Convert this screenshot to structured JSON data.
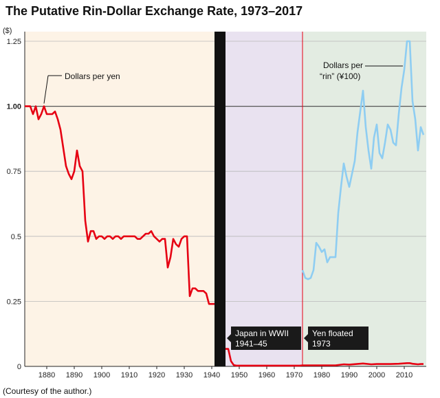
{
  "chart_data": {
    "type": "line",
    "title": "The Putative Rin-Dollar Exchange Rate, 1973–2017",
    "ylabel": "($)",
    "xlim": [
      1872,
      2018
    ],
    "ylim": [
      0,
      1.3
    ],
    "grid": "horizontal",
    "x_ticks": [
      "1880",
      "1890",
      "1900",
      "1910",
      "1920",
      "1930",
      "1940",
      "1950",
      "1960",
      "1970",
      "1980",
      "1990",
      "2000",
      "2010"
    ],
    "y_ticks": [
      "0",
      "0.25",
      "0.5",
      "0.75",
      "1.00",
      "1.25"
    ],
    "reference_line": 1.0,
    "series": [
      {
        "name": "Dollars per yen",
        "color": "#e60012",
        "segments": [
          [
            [
              1872,
              1.0
            ],
            [
              1873,
              1.0
            ],
            [
              1874,
              1.0
            ],
            [
              1875,
              0.97
            ],
            [
              1876,
              1.0
            ],
            [
              1877,
              0.95
            ],
            [
              1878,
              0.97
            ],
            [
              1879,
              1.0
            ],
            [
              1880,
              0.97
            ],
            [
              1881,
              0.97
            ],
            [
              1882,
              0.97
            ],
            [
              1883,
              0.98
            ],
            [
              1884,
              0.95
            ],
            [
              1885,
              0.91
            ],
            [
              1886,
              0.84
            ],
            [
              1887,
              0.77
            ],
            [
              1888,
              0.74
            ],
            [
              1889,
              0.72
            ],
            [
              1890,
              0.75
            ],
            [
              1891,
              0.83
            ],
            [
              1892,
              0.77
            ],
            [
              1893,
              0.75
            ],
            [
              1894,
              0.56
            ],
            [
              1895,
              0.48
            ],
            [
              1896,
              0.52
            ],
            [
              1897,
              0.52
            ],
            [
              1898,
              0.49
            ],
            [
              1899,
              0.5
            ],
            [
              1900,
              0.5
            ],
            [
              1901,
              0.49
            ],
            [
              1902,
              0.5
            ],
            [
              1903,
              0.5
            ],
            [
              1904,
              0.49
            ],
            [
              1905,
              0.5
            ],
            [
              1906,
              0.5
            ],
            [
              1907,
              0.49
            ],
            [
              1908,
              0.5
            ],
            [
              1909,
              0.5
            ],
            [
              1910,
              0.5
            ],
            [
              1911,
              0.5
            ],
            [
              1912,
              0.5
            ],
            [
              1913,
              0.49
            ],
            [
              1914,
              0.49
            ],
            [
              1915,
              0.5
            ],
            [
              1916,
              0.51
            ],
            [
              1917,
              0.51
            ],
            [
              1918,
              0.52
            ],
            [
              1919,
              0.5
            ],
            [
              1920,
              0.49
            ],
            [
              1921,
              0.48
            ],
            [
              1922,
              0.49
            ],
            [
              1923,
              0.49
            ],
            [
              1924,
              0.38
            ],
            [
              1925,
              0.42
            ],
            [
              1926,
              0.49
            ],
            [
              1927,
              0.47
            ],
            [
              1928,
              0.46
            ],
            [
              1929,
              0.49
            ],
            [
              1930,
              0.5
            ],
            [
              1931,
              0.5
            ],
            [
              1932,
              0.27
            ],
            [
              1933,
              0.3
            ],
            [
              1934,
              0.3
            ],
            [
              1935,
              0.29
            ],
            [
              1936,
              0.29
            ],
            [
              1937,
              0.29
            ],
            [
              1938,
              0.28
            ],
            [
              1939,
              0.24
            ],
            [
              1940,
              0.24
            ],
            [
              1941,
              0.24
            ]
          ],
          [
            [
              1945,
              0.067
            ],
            [
              1946,
              0.067
            ],
            [
              1947,
              0.02
            ],
            [
              1948,
              0.005
            ],
            [
              1949,
              0.003
            ],
            [
              1950,
              0.003
            ],
            [
              1960,
              0.003
            ],
            [
              1971,
              0.003
            ],
            [
              1972,
              0.003
            ],
            [
              1973,
              0.004
            ],
            [
              1980,
              0.004
            ],
            [
              1985,
              0.004
            ],
            [
              1988,
              0.008
            ],
            [
              1990,
              0.007
            ],
            [
              1995,
              0.011
            ],
            [
              1998,
              0.008
            ],
            [
              2000,
              0.009
            ],
            [
              2005,
              0.009
            ],
            [
              2008,
              0.01
            ],
            [
              2011,
              0.0125
            ],
            [
              2012,
              0.0125
            ],
            [
              2013,
              0.01
            ],
            [
              2015,
              0.008
            ],
            [
              2016,
              0.009
            ],
            [
              2017,
              0.009
            ]
          ]
        ]
      },
      {
        "name": "Dollars per “rin” (¥100)",
        "color": "#8ecdf2",
        "segments": [
          [
            [
              1973,
              0.37
            ],
            [
              1974,
              0.34
            ],
            [
              1975,
              0.335
            ],
            [
              1976,
              0.34
            ],
            [
              1977,
              0.37
            ],
            [
              1978,
              0.475
            ],
            [
              1979,
              0.46
            ],
            [
              1980,
              0.44
            ],
            [
              1981,
              0.45
            ],
            [
              1982,
              0.4
            ],
            [
              1983,
              0.42
            ],
            [
              1984,
              0.42
            ],
            [
              1985,
              0.42
            ],
            [
              1986,
              0.59
            ],
            [
              1987,
              0.69
            ],
            [
              1988,
              0.78
            ],
            [
              1989,
              0.73
            ],
            [
              1990,
              0.69
            ],
            [
              1991,
              0.74
            ],
            [
              1992,
              0.79
            ],
            [
              1993,
              0.9
            ],
            [
              1994,
              0.98
            ],
            [
              1995,
              1.06
            ],
            [
              1996,
              0.92
            ],
            [
              1997,
              0.83
            ],
            [
              1998,
              0.76
            ],
            [
              1999,
              0.88
            ],
            [
              2000,
              0.93
            ],
            [
              2001,
              0.82
            ],
            [
              2002,
              0.8
            ],
            [
              2003,
              0.86
            ],
            [
              2004,
              0.93
            ],
            [
              2005,
              0.91
            ],
            [
              2006,
              0.86
            ],
            [
              2007,
              0.85
            ],
            [
              2008,
              0.97
            ],
            [
              2009,
              1.07
            ],
            [
              2010,
              1.14
            ],
            [
              2011,
              1.25
            ],
            [
              2012,
              1.25
            ],
            [
              2013,
              1.02
            ],
            [
              2014,
              0.95
            ],
            [
              2015,
              0.83
            ],
            [
              2016,
              0.92
            ],
            [
              2017,
              0.89
            ]
          ]
        ]
      }
    ],
    "shaded_periods": [
      {
        "from": 1872,
        "to": 1941,
        "color": "#fdf3e6"
      },
      {
        "from": 1941,
        "to": 1973,
        "color": "#e9e2f0"
      },
      {
        "from": 1973,
        "to": 2018,
        "color": "#e3ece2"
      }
    ],
    "war_band": {
      "from": 1941,
      "to": 1945,
      "color": "#111111"
    },
    "float_year": 1973,
    "annotations": {
      "dollars_per_yen": "Dollars per yen",
      "dollars_per_rin_line1": "Dollars per",
      "dollars_per_rin_line2": "“rin” (¥100)",
      "wwii_line1": "Japan in WWII",
      "wwii_line2": "1941–45",
      "float_line1": "Yen floated",
      "float_line2": "1973"
    }
  },
  "credit": "(Courtesy of the author.)"
}
